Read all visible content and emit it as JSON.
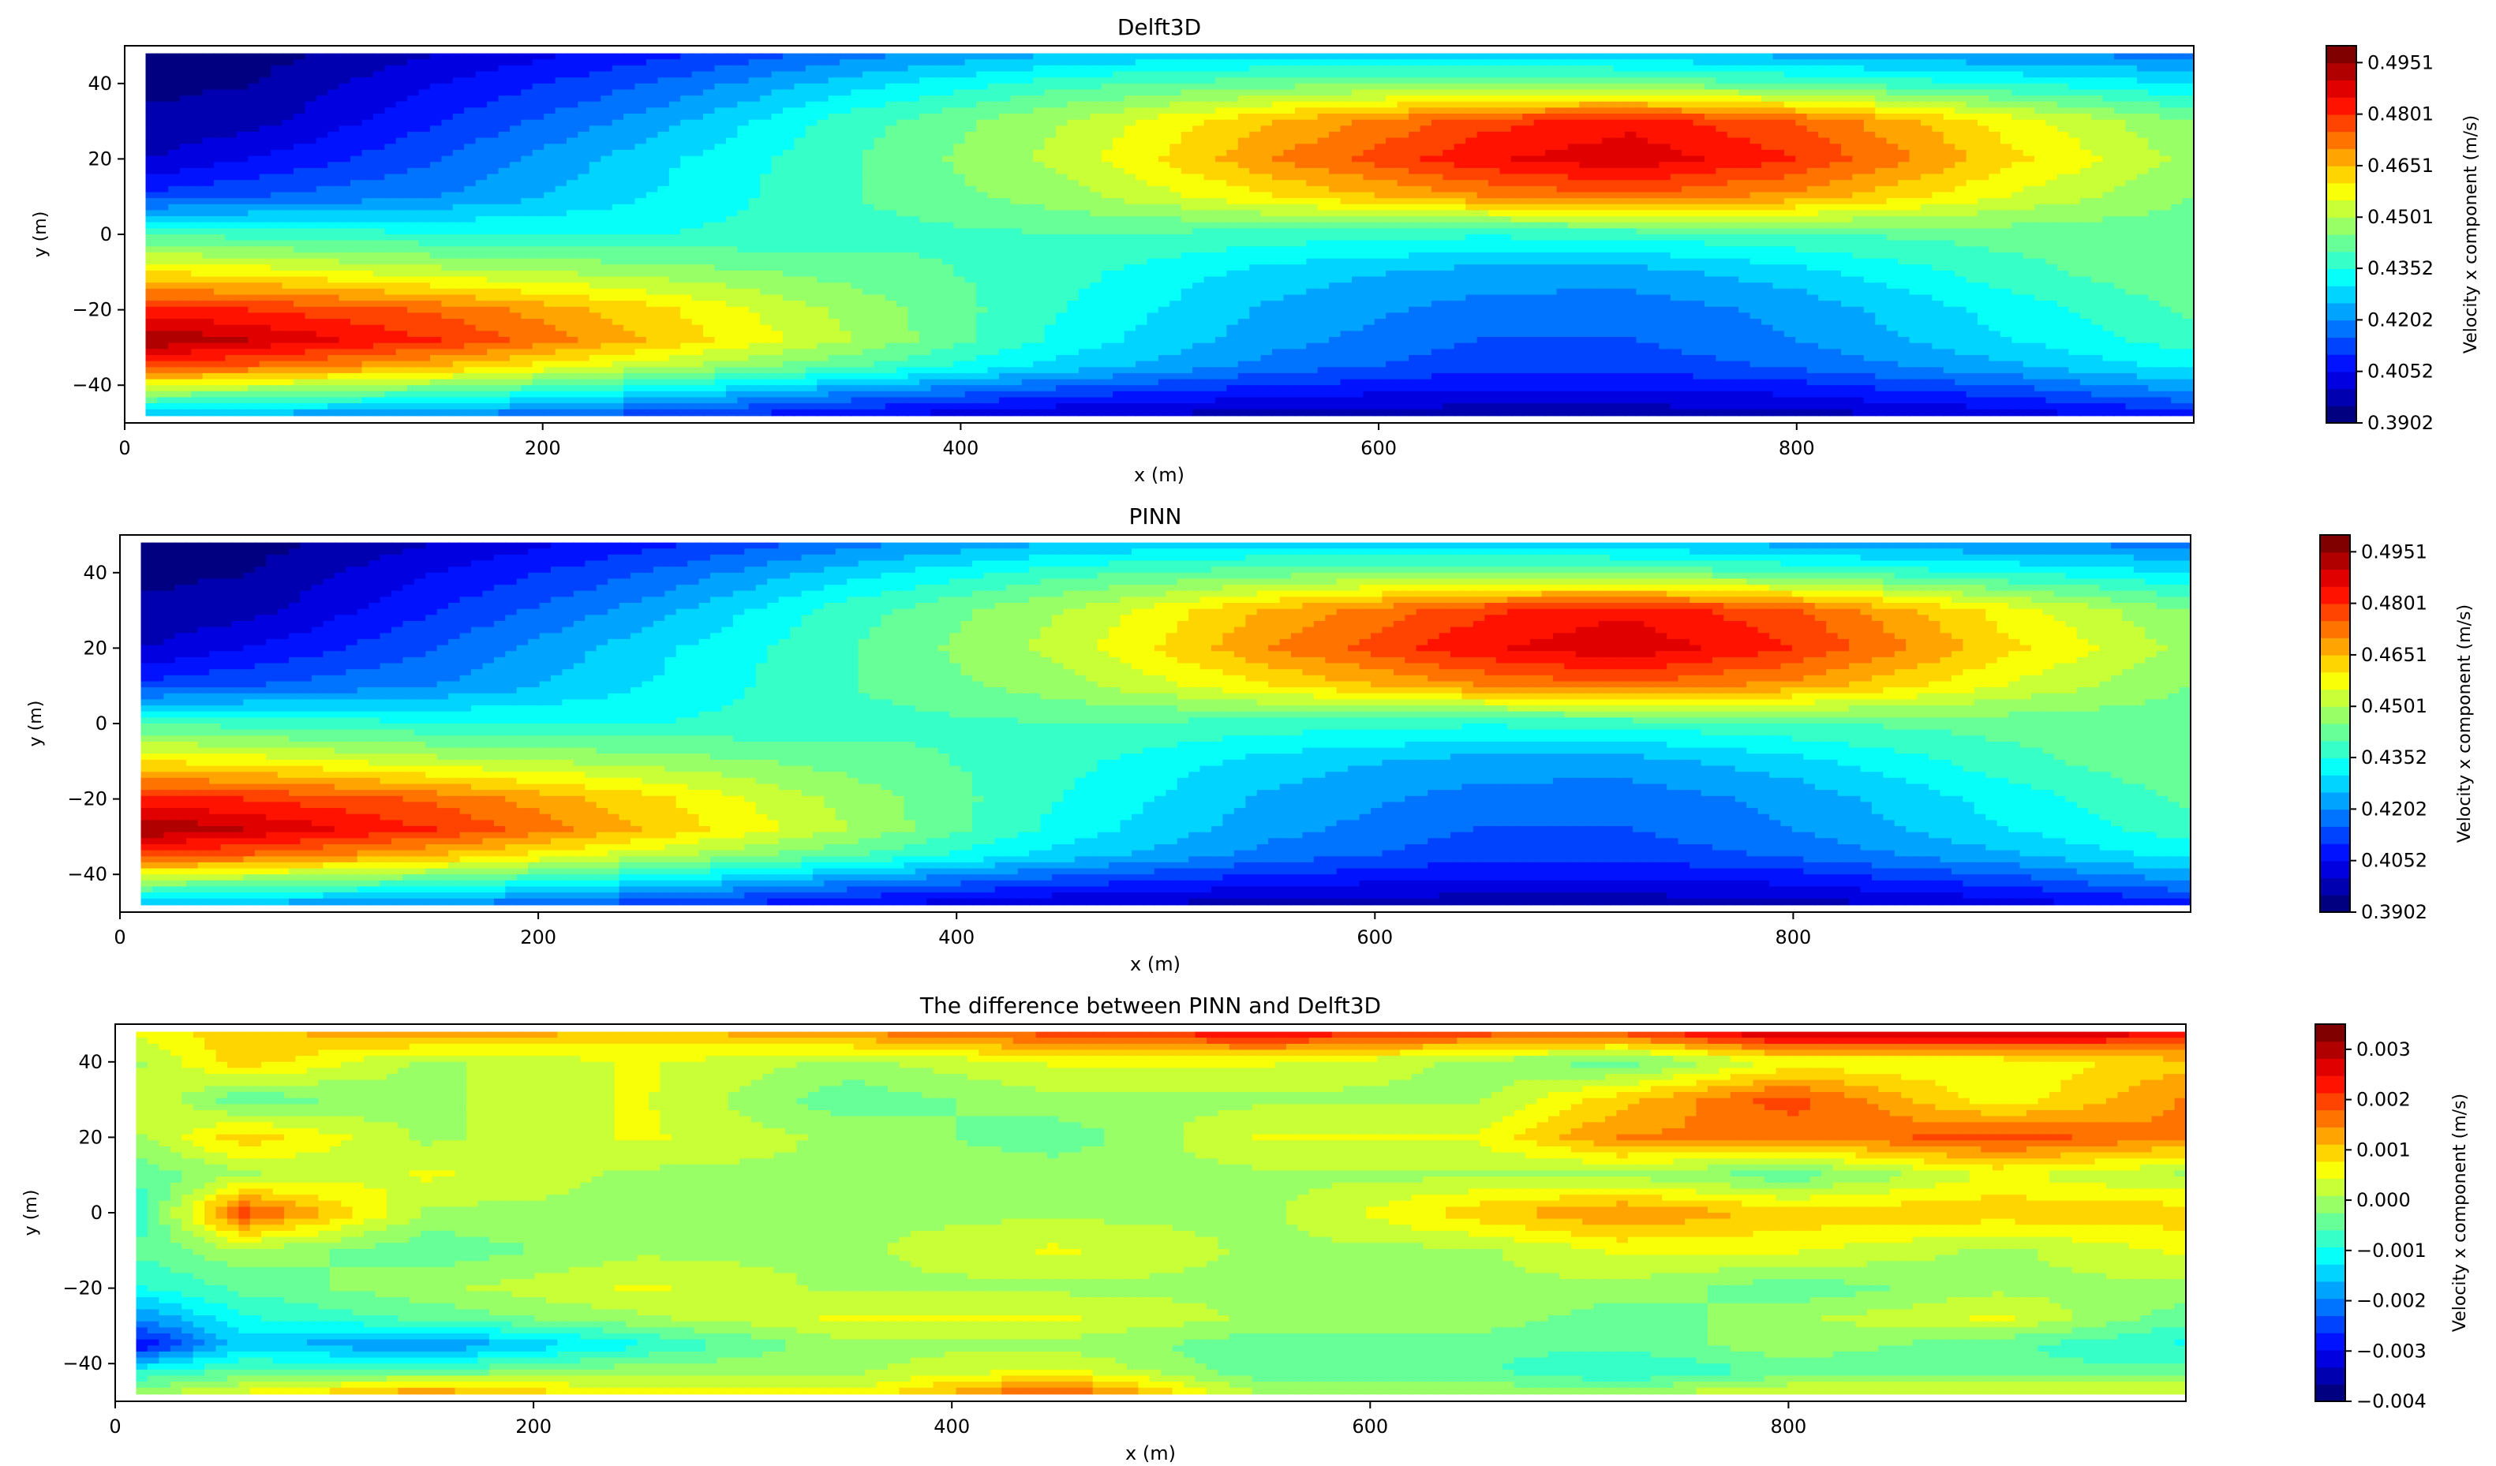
{
  "chart_data": [
    {
      "type": "heatmap",
      "title": "Delft3D",
      "xlabel": "x (m)",
      "ylabel": "y (m)",
      "xlim": [
        0,
        990
      ],
      "ylim": [
        -50,
        50
      ],
      "x_ticks": [
        "0",
        "200",
        "400",
        "600",
        "800"
      ],
      "y_ticks": [
        "40",
        "20",
        "0",
        "−20",
        "−40"
      ],
      "colorbar_label": "Velocity x component (m/s)",
      "colorbar_ticks": [
        "0.4951",
        "0.4801",
        "0.4651",
        "0.4501",
        "0.4352",
        "0.4202",
        "0.4052",
        "0.3902"
      ],
      "vmin": 0.3902,
      "vmax": 0.5,
      "colormap": "jet",
      "field": {
        "x": [
          10,
          60,
          150,
          250,
          350,
          450,
          550,
          650,
          720,
          800,
          900,
          990
        ],
        "y": [
          48,
          40,
          30,
          20,
          10,
          0,
          -10,
          -20,
          -28,
          -35,
          -42,
          -48
        ],
        "values": [
          [
            0.392,
            0.393,
            0.4,
            0.408,
            0.418,
            0.425,
            0.428,
            0.428,
            0.426,
            0.423,
            0.42,
            0.418
          ],
          [
            0.394,
            0.395,
            0.405,
            0.415,
            0.428,
            0.438,
            0.443,
            0.445,
            0.444,
            0.44,
            0.435,
            0.43
          ],
          [
            0.396,
            0.398,
            0.41,
            0.422,
            0.438,
            0.45,
            0.465,
            0.478,
            0.483,
            0.475,
            0.458,
            0.445
          ],
          [
            0.4,
            0.405,
            0.415,
            0.428,
            0.44,
            0.452,
            0.47,
            0.484,
            0.489,
            0.48,
            0.462,
            0.448
          ],
          [
            0.412,
            0.415,
            0.42,
            0.43,
            0.44,
            0.448,
            0.46,
            0.47,
            0.474,
            0.468,
            0.455,
            0.445
          ],
          [
            0.44,
            0.438,
            0.436,
            0.435,
            0.438,
            0.44,
            0.438,
            0.436,
            0.437,
            0.44,
            0.442,
            0.442
          ],
          [
            0.46,
            0.458,
            0.452,
            0.448,
            0.443,
            0.437,
            0.428,
            0.423,
            0.423,
            0.428,
            0.438,
            0.445
          ],
          [
            0.482,
            0.48,
            0.474,
            0.462,
            0.448,
            0.435,
            0.424,
            0.418,
            0.417,
            0.422,
            0.432,
            0.441
          ],
          [
            0.495,
            0.49,
            0.48,
            0.465,
            0.45,
            0.433,
            0.422,
            0.415,
            0.415,
            0.42,
            0.43,
            0.438
          ],
          [
            0.478,
            0.474,
            0.465,
            0.452,
            0.44,
            0.428,
            0.418,
            0.412,
            0.412,
            0.416,
            0.424,
            0.432
          ],
          [
            0.448,
            0.445,
            0.44,
            0.43,
            0.42,
            0.412,
            0.407,
            0.404,
            0.404,
            0.406,
            0.412,
            0.42
          ],
          [
            0.425,
            0.423,
            0.42,
            0.412,
            0.405,
            0.4,
            0.398,
            0.397,
            0.397,
            0.398,
            0.402,
            0.408
          ]
        ]
      }
    },
    {
      "type": "heatmap",
      "title": "PINN",
      "xlabel": "x (m)",
      "ylabel": "y (m)",
      "xlim": [
        0,
        990
      ],
      "ylim": [
        -50,
        50
      ],
      "x_ticks": [
        "0",
        "200",
        "400",
        "600",
        "800"
      ],
      "y_ticks": [
        "40",
        "20",
        "0",
        "−20",
        "−40"
      ],
      "colorbar_label": "Velocity x component (m/s)",
      "colorbar_ticks": [
        "0.4951",
        "0.4801",
        "0.4651",
        "0.4501",
        "0.4352",
        "0.4202",
        "0.4052",
        "0.3902"
      ],
      "vmin": 0.3902,
      "vmax": 0.5,
      "colormap": "jet",
      "field": {
        "x": [
          10,
          60,
          150,
          250,
          350,
          450,
          550,
          650,
          720,
          800,
          900,
          990
        ],
        "y": [
          48,
          40,
          30,
          20,
          10,
          0,
          -10,
          -20,
          -28,
          -35,
          -42,
          -48
        ],
        "values": [
          [
            0.392,
            0.393,
            0.4,
            0.408,
            0.418,
            0.425,
            0.428,
            0.428,
            0.426,
            0.423,
            0.42,
            0.418
          ],
          [
            0.394,
            0.395,
            0.405,
            0.415,
            0.428,
            0.438,
            0.443,
            0.445,
            0.444,
            0.44,
            0.435,
            0.43
          ],
          [
            0.396,
            0.398,
            0.41,
            0.422,
            0.438,
            0.45,
            0.466,
            0.479,
            0.484,
            0.476,
            0.458,
            0.445
          ],
          [
            0.4,
            0.405,
            0.415,
            0.428,
            0.44,
            0.452,
            0.47,
            0.484,
            0.489,
            0.48,
            0.462,
            0.448
          ],
          [
            0.412,
            0.415,
            0.42,
            0.43,
            0.44,
            0.448,
            0.46,
            0.47,
            0.474,
            0.468,
            0.455,
            0.445
          ],
          [
            0.44,
            0.438,
            0.436,
            0.435,
            0.438,
            0.44,
            0.438,
            0.436,
            0.437,
            0.44,
            0.442,
            0.442
          ],
          [
            0.46,
            0.458,
            0.452,
            0.448,
            0.443,
            0.437,
            0.428,
            0.423,
            0.423,
            0.428,
            0.438,
            0.445
          ],
          [
            0.482,
            0.48,
            0.474,
            0.462,
            0.448,
            0.435,
            0.424,
            0.418,
            0.417,
            0.422,
            0.432,
            0.441
          ],
          [
            0.495,
            0.49,
            0.48,
            0.465,
            0.45,
            0.433,
            0.422,
            0.415,
            0.415,
            0.42,
            0.43,
            0.438
          ],
          [
            0.478,
            0.474,
            0.465,
            0.452,
            0.44,
            0.428,
            0.418,
            0.412,
            0.412,
            0.416,
            0.424,
            0.432
          ],
          [
            0.448,
            0.445,
            0.44,
            0.43,
            0.42,
            0.412,
            0.407,
            0.404,
            0.404,
            0.406,
            0.412,
            0.42
          ],
          [
            0.425,
            0.423,
            0.42,
            0.412,
            0.405,
            0.4,
            0.398,
            0.397,
            0.397,
            0.398,
            0.402,
            0.408
          ]
        ]
      }
    },
    {
      "type": "heatmap",
      "title": "The difference between PINN and Delft3D",
      "xlabel": "x (m)",
      "ylabel": "y (m)",
      "xlim": [
        0,
        990
      ],
      "ylim": [
        -50,
        50
      ],
      "x_ticks": [
        "0",
        "200",
        "400",
        "600",
        "800"
      ],
      "y_ticks": [
        "40",
        "20",
        "0",
        "−20",
        "−40"
      ],
      "colorbar_label": "Velocity x component (m/s)",
      "colorbar_ticks": [
        "0.003",
        "0.002",
        "0.001",
        "0.000",
        "−0.001",
        "−0.002",
        "−0.003",
        "−0.004"
      ],
      "vmin": -0.004,
      "vmax": 0.0035,
      "colormap": "jet",
      "field": {
        "x": [
          10,
          60,
          150,
          250,
          350,
          450,
          550,
          650,
          720,
          800,
          900,
          990
        ],
        "y": [
          48,
          40,
          30,
          20,
          10,
          0,
          -10,
          -20,
          -28,
          -35,
          -42,
          -48
        ],
        "values": [
          [
            0.0005,
            0.001,
            0.0015,
            0.001,
            0.0015,
            0.002,
            0.0025,
            0.002,
            0.002,
            0.003,
            0.003,
            0.0025
          ],
          [
            0.0,
            0.001,
            0.0,
            0.0005,
            0.0,
            0.0005,
            0.0005,
            0.0,
            -0.0005,
            0.0005,
            0.0005,
            0.001
          ],
          [
            0.0005,
            -0.0005,
            0.0,
            0.0005,
            -0.0005,
            0.0,
            0.0,
            0.0,
            0.001,
            0.002,
            0.0005,
            0.0015
          ],
          [
            0.0,
            0.001,
            0.0,
            0.0005,
            0.0,
            -0.0005,
            0.0005,
            0.0005,
            0.0015,
            0.0015,
            0.002,
            0.0015
          ],
          [
            -0.0005,
            0.0,
            0.0005,
            0.0,
            0.0,
            0.0,
            0.0,
            0.0,
            0.0,
            -0.0005,
            0.0005,
            0.0
          ],
          [
            -0.001,
            0.002,
            0.0,
            0.0,
            0.0,
            0.0,
            0.0,
            0.001,
            0.0015,
            0.001,
            0.001,
            0.001
          ],
          [
            -0.0005,
            0.0,
            -0.0005,
            0.0,
            0.0,
            0.0005,
            0.0,
            0.0,
            0.0005,
            0.0005,
            0.0,
            0.0005
          ],
          [
            -0.001,
            -0.0005,
            0.0,
            0.0005,
            0.0,
            0.0,
            0.0,
            0.0,
            0.0,
            -0.0005,
            0.0,
            0.0
          ],
          [
            -0.002,
            -0.001,
            -0.0005,
            0.0,
            0.0005,
            0.0005,
            0.0,
            0.0,
            -0.0005,
            0.0,
            0.0005,
            -0.0005
          ],
          [
            -0.003,
            -0.0015,
            -0.002,
            -0.001,
            0.0,
            0.0,
            -0.0005,
            -0.0005,
            -0.0005,
            0.0,
            -0.0005,
            -0.001
          ],
          [
            -0.001,
            -0.0005,
            -0.0005,
            0.0,
            0.0,
            0.0005,
            -0.0005,
            -0.0005,
            -0.001,
            -0.0005,
            -0.0005,
            -0.0005
          ],
          [
            0.0,
            0.0005,
            0.0015,
            0.0005,
            0.0005,
            0.002,
            0.0,
            0.0,
            0.0,
            0.0005,
            0.0005,
            0.0005
          ]
        ]
      }
    }
  ]
}
